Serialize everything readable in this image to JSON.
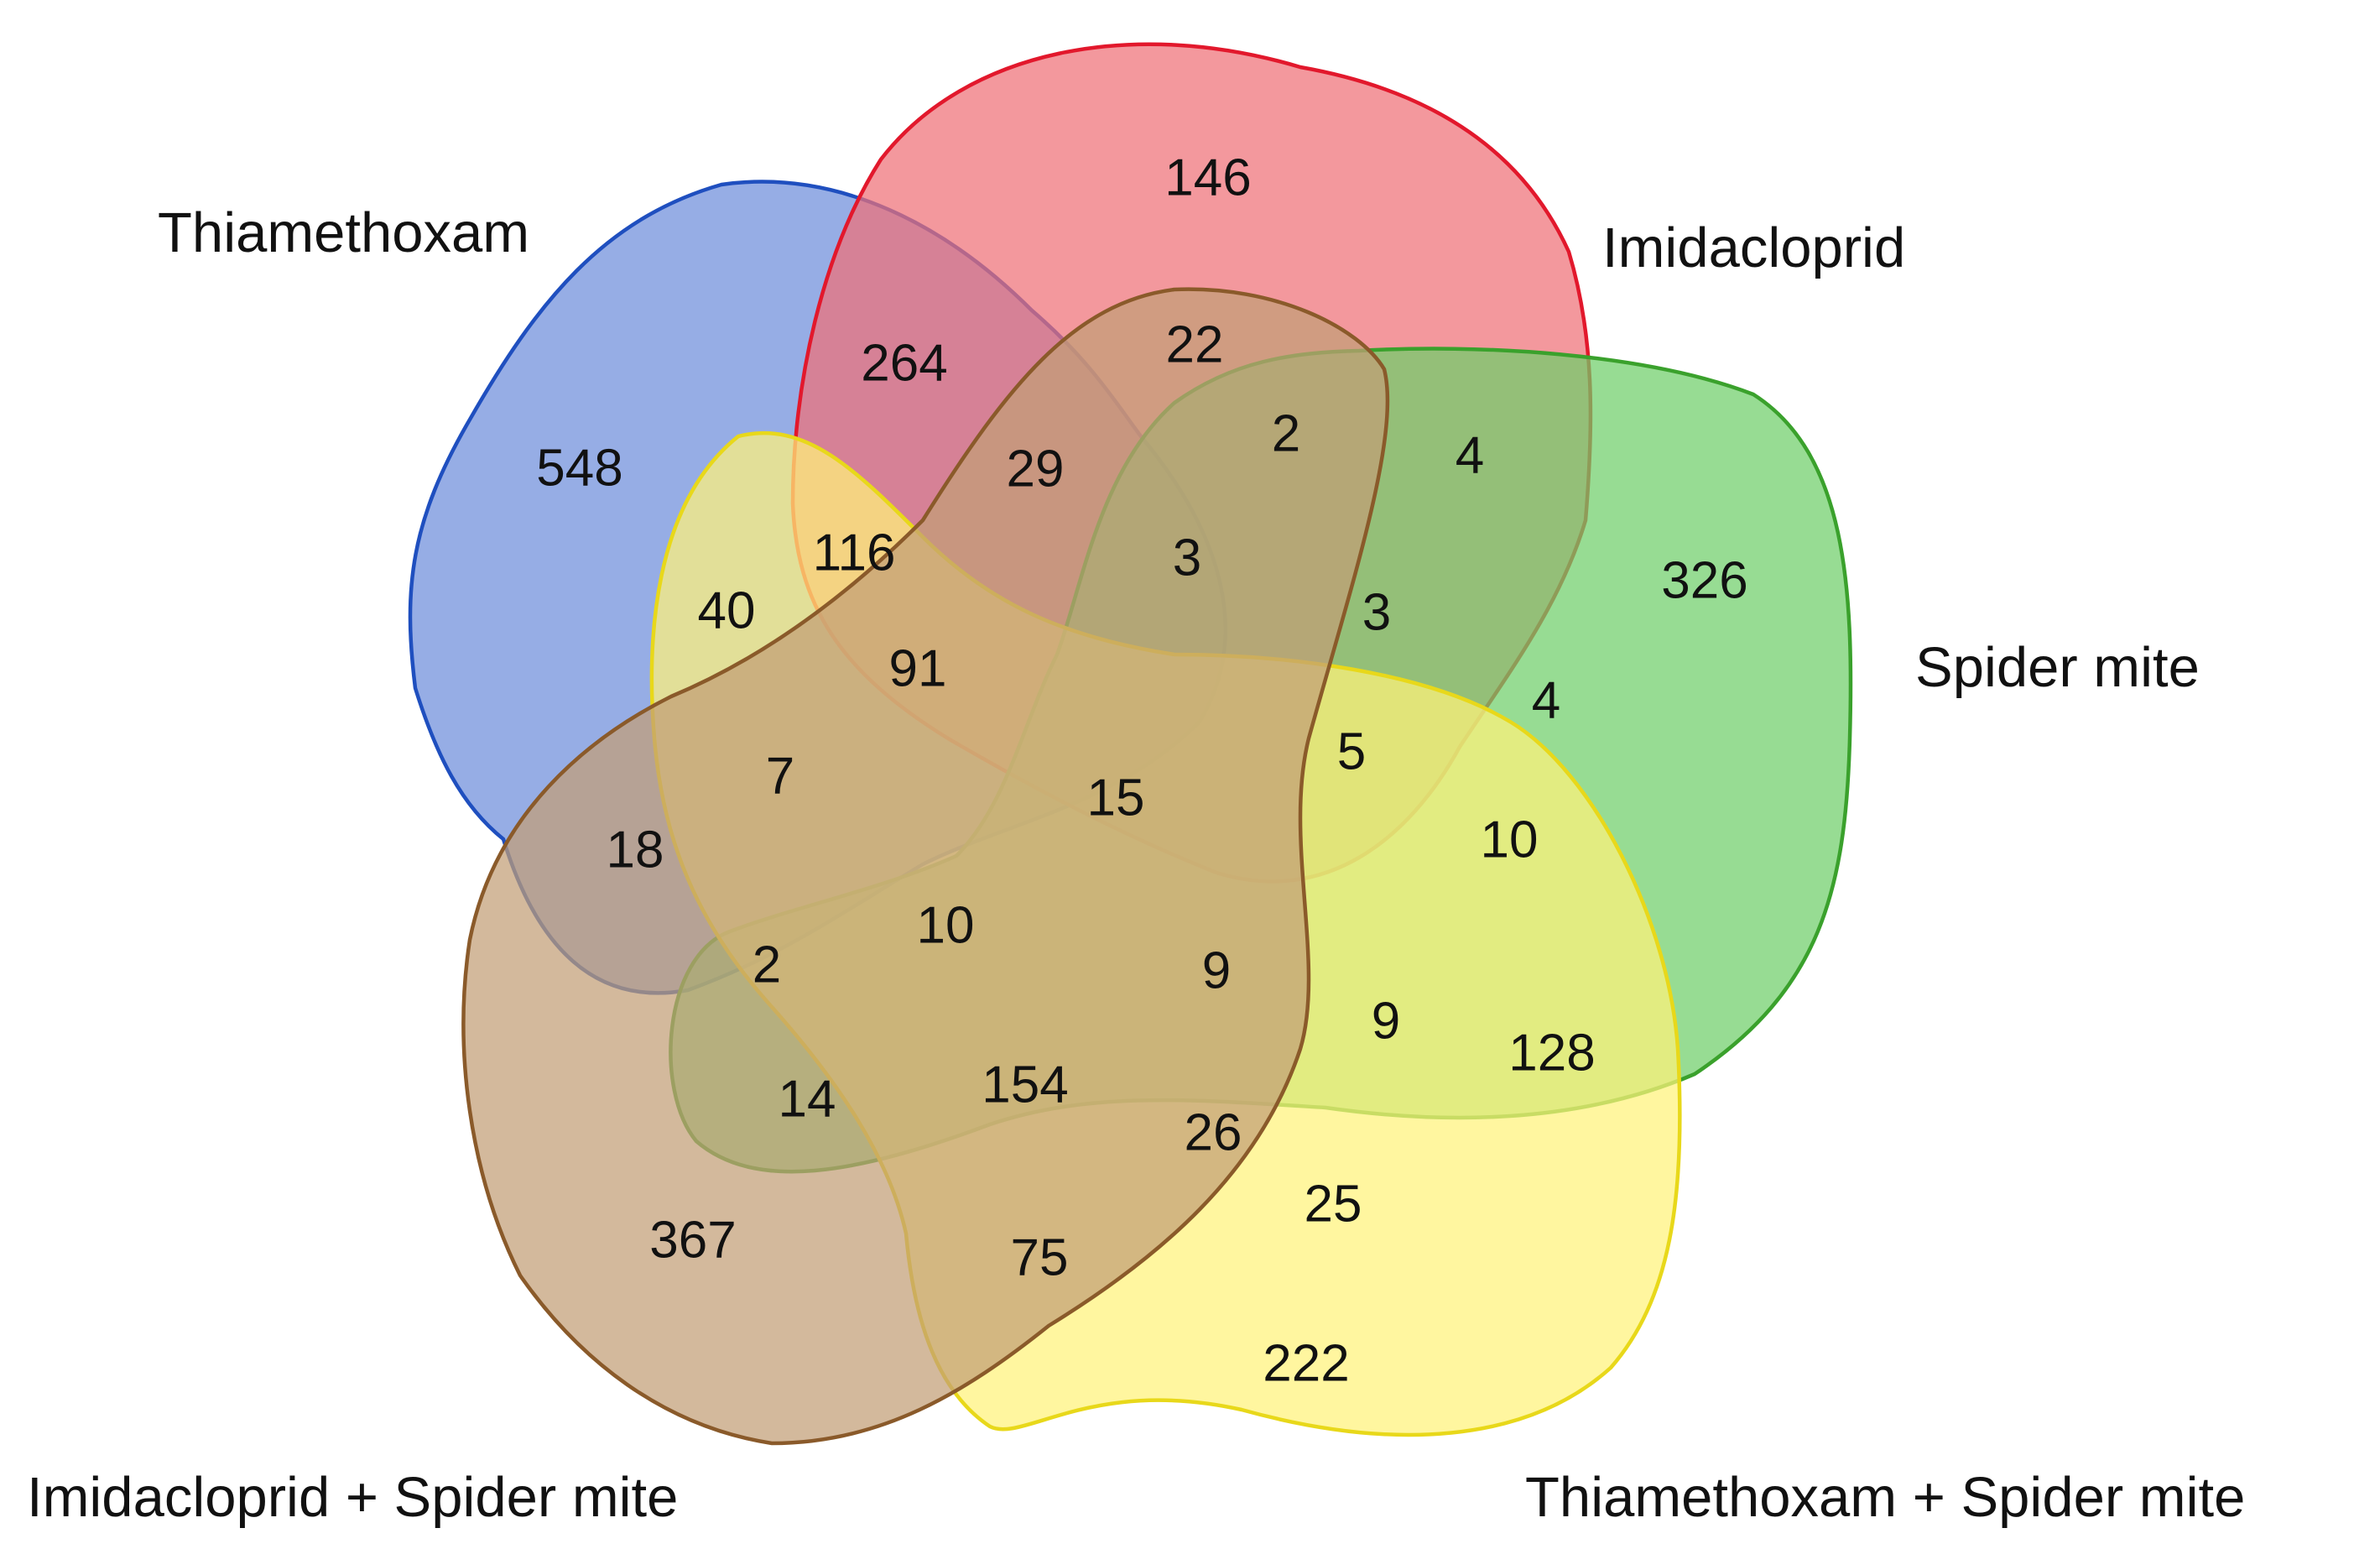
{
  "diagram": {
    "type": "venn-5",
    "sets": [
      {
        "key": "thiamethoxam",
        "label": "Thiamethoxam",
        "fill": "#6d8ddb",
        "stroke": "#1f4fbf"
      },
      {
        "key": "imidacloprid",
        "label": "Imidacloprid",
        "fill": "#ee7077",
        "stroke": "#e2182c"
      },
      {
        "key": "spider_mite",
        "label": "Spider mite",
        "fill": "#6fcf6a",
        "stroke": "#3aa12c"
      },
      {
        "key": "thiamethoxam_spider_mite",
        "label": "Thiamethoxam + Spider mite",
        "fill": "#fff27a",
        "stroke": "#e8d81a"
      },
      {
        "key": "imidacloprid_spider_mite",
        "label": "Imidacloprid + Spider mite",
        "fill": "#c29e76",
        "stroke": "#8a5a2a"
      }
    ],
    "region_counts": [
      {
        "sets": [
          "thiamethoxam"
        ],
        "value": "548"
      },
      {
        "sets": [
          "imidacloprid"
        ],
        "value": "146"
      },
      {
        "sets": [
          "spider_mite"
        ],
        "value": "326"
      },
      {
        "sets": [
          "thiamethoxam_spider_mite"
        ],
        "value": "222"
      },
      {
        "sets": [
          "imidacloprid_spider_mite"
        ],
        "value": "367"
      },
      {
        "sets": [
          "thiamethoxam",
          "imidacloprid"
        ],
        "value": "264"
      },
      {
        "sets": [
          "imidacloprid",
          "imidacloprid_spider_mite"
        ],
        "value": "22"
      },
      {
        "sets": [
          "imidacloprid",
          "spider_mite",
          "imidacloprid_spider_mite"
        ],
        "value": "2"
      },
      {
        "sets": [
          "imidacloprid",
          "spider_mite"
        ],
        "value": "4"
      },
      {
        "sets": [
          "thiamethoxam",
          "imidacloprid",
          "imidacloprid_spider_mite"
        ],
        "value": "29"
      },
      {
        "sets": [
          "thiamethoxam",
          "imidacloprid",
          "thiamethoxam_spider_mite"
        ],
        "value": "116"
      },
      {
        "sets": [
          "thiamethoxam",
          "thiamethoxam_spider_mite"
        ],
        "value": "40"
      },
      {
        "sets": [
          "thiamethoxam",
          "imidacloprid",
          "spider_mite",
          "imidacloprid_spider_mite"
        ],
        "value": "3"
      },
      {
        "sets": [
          "thiamethoxam",
          "imidacloprid",
          "spider_mite"
        ],
        "value": "3"
      },
      {
        "sets": [
          "thiamethoxam",
          "spider_mite"
        ],
        "value": "4"
      },
      {
        "sets": [
          "thiamethoxam",
          "imidacloprid",
          "thiamethoxam_spider_mite",
          "imidacloprid_spider_mite"
        ],
        "value": "91"
      },
      {
        "sets": [
          "thiamethoxam",
          "thiamethoxam_spider_mite",
          "imidacloprid_spider_mite"
        ],
        "value": "7"
      },
      {
        "sets": [
          "thiamethoxam",
          "imidacloprid",
          "spider_mite",
          "thiamethoxam_spider_mite",
          "imidacloprid_spider_mite"
        ],
        "value": "15"
      },
      {
        "sets": [
          "thiamethoxam",
          "imidacloprid",
          "spider_mite",
          "thiamethoxam_spider_mite"
        ],
        "value": "5"
      },
      {
        "sets": [
          "thiamethoxam",
          "spider_mite",
          "thiamethoxam_spider_mite"
        ],
        "value": "10"
      },
      {
        "sets": [
          "thiamethoxam",
          "imidacloprid_spider_mite"
        ],
        "value": "18"
      },
      {
        "sets": [
          "thiamethoxam",
          "spider_mite",
          "imidacloprid_spider_mite"
        ],
        "value": "2"
      },
      {
        "sets": [
          "thiamethoxam",
          "spider_mite",
          "thiamethoxam_spider_mite",
          "imidacloprid_spider_mite"
        ],
        "value": "10"
      },
      {
        "sets": [
          "imidacloprid",
          "spider_mite",
          "thiamethoxam_spider_mite",
          "imidacloprid_spider_mite"
        ],
        "value": "9"
      },
      {
        "sets": [
          "imidacloprid",
          "spider_mite",
          "thiamethoxam_spider_mite"
        ],
        "value": "9"
      },
      {
        "sets": [
          "spider_mite",
          "thiamethoxam_spider_mite"
        ],
        "value": "128"
      },
      {
        "sets": [
          "spider_mite",
          "imidacloprid_spider_mite"
        ],
        "value": "14"
      },
      {
        "sets": [
          "spider_mite",
          "thiamethoxam_spider_mite",
          "imidacloprid_spider_mite"
        ],
        "value": "154"
      },
      {
        "sets": [
          "imidacloprid",
          "thiamethoxam_spider_mite",
          "imidacloprid_spider_mite"
        ],
        "value": "26"
      },
      {
        "sets": [
          "imidacloprid",
          "thiamethoxam_spider_mite"
        ],
        "value": "25"
      },
      {
        "sets": [
          "thiamethoxam_spider_mite",
          "imidacloprid_spider_mite"
        ],
        "value": "75"
      }
    ]
  }
}
